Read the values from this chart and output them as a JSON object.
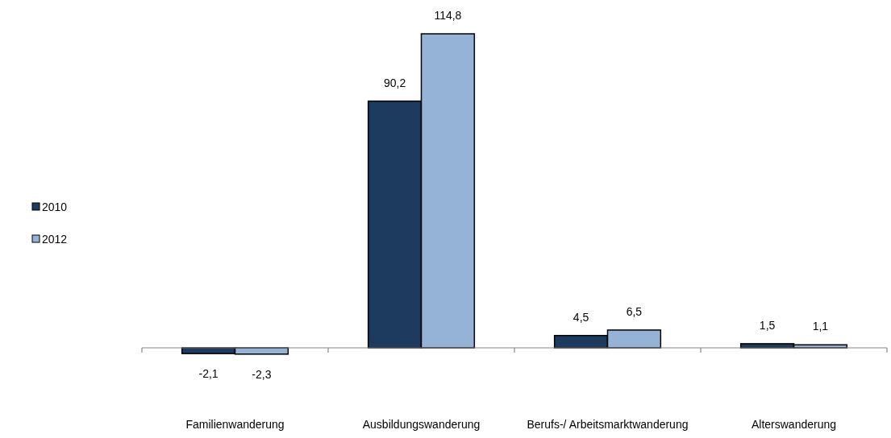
{
  "chart_data": {
    "type": "bar",
    "categories": [
      "Familienwanderung",
      "Ausbildungswanderung",
      "Berufs-/ Arbeitsmarktwanderung",
      "Alterswanderung"
    ],
    "series": [
      {
        "name": "2010",
        "color": "#1d3a5f",
        "values": [
          -2.1,
          90.2,
          4.5,
          1.5
        ],
        "value_labels": [
          "-2,1",
          "90,2",
          "4,5",
          "1,5"
        ]
      },
      {
        "name": "2012",
        "color": "#95b3d7",
        "values": [
          -2.3,
          114.8,
          6.5,
          1.1
        ],
        "value_labels": [
          "-2,3",
          "114,8",
          "6,5",
          "1,1"
        ]
      }
    ],
    "legend": "left"
  }
}
